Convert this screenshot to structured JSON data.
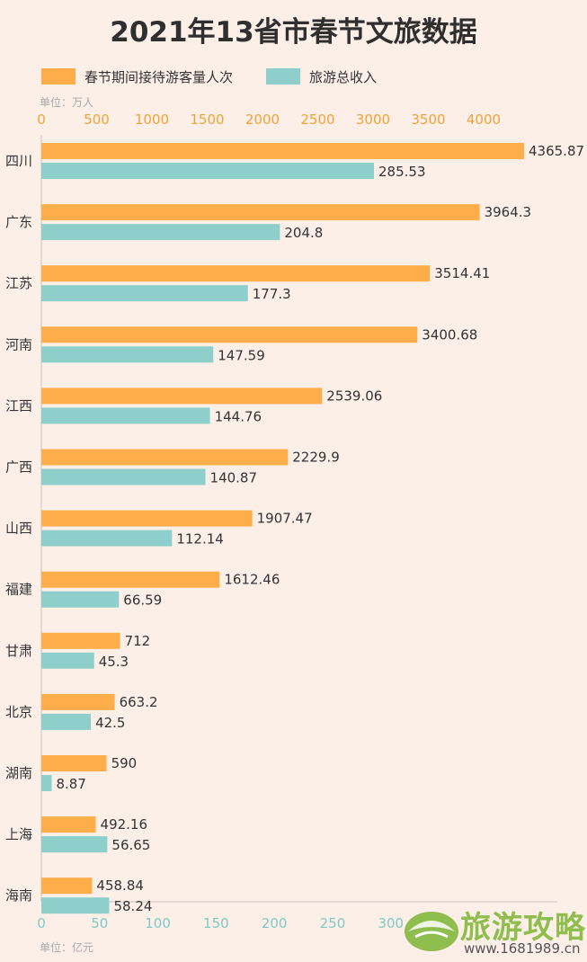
{
  "header": {
    "title": "2021年13省市春节文旅数据"
  },
  "units": {
    "top": "单位：万人",
    "bottom": "单位：亿元"
  },
  "colors": {
    "background": "#fcefe8",
    "visitors": "#fdad4a",
    "revenue": "#8ecfcc",
    "top_axis_text": "#f2a238",
    "bottom_axis_text": "#7fcac6"
  },
  "watermark": {
    "name": "旅游攻略",
    "url": "www.1681989.cn",
    "icon": "leaf-logo-icon"
  },
  "chart_data": {
    "type": "bar",
    "orientation": "horizontal",
    "title": "2021年13省市春节文旅数据",
    "categories": [
      "四川",
      "广东",
      "江苏",
      "河南",
      "江西",
      "广西",
      "山西",
      "福建",
      "甘肃",
      "北京",
      "湖南",
      "上海",
      "海南"
    ],
    "series": [
      {
        "name": "春节期间接待游客量人次",
        "axis": "top",
        "unit": "万人",
        "values": [
          4365.87,
          3964.3,
          3514.41,
          3400.68,
          2539.06,
          2229.9,
          1907.47,
          1612.46,
          712,
          663.2,
          590,
          492.16,
          458.84
        ],
        "labels": [
          "4365.87",
          "3964.3",
          "3514.41",
          "3400.68",
          "2539.06",
          "2229.9",
          "1907.47",
          "1612.46",
          "712",
          "663.2",
          "590",
          "492.16",
          "458.84"
        ]
      },
      {
        "name": "旅游总收入",
        "axis": "bottom",
        "unit": "亿元",
        "values": [
          285.53,
          204.8,
          177.3,
          147.59,
          144.76,
          140.87,
          112.14,
          66.59,
          45.3,
          42.5,
          8.87,
          56.65,
          58.24
        ],
        "labels": [
          "285.53",
          "204.8",
          "177.3",
          "147.59",
          "144.76",
          "140.87",
          "112.14",
          "66.59",
          "45.3",
          "42.5",
          "8.87",
          "56.65",
          "58.24"
        ]
      }
    ],
    "top_axis": {
      "ticks": [
        0,
        500,
        1000,
        1500,
        2000,
        2500,
        3000,
        3500,
        4000
      ],
      "labels": [
        "0",
        "500",
        "1000",
        "1500",
        "2000",
        "2500",
        "3000",
        "3500",
        "4000"
      ]
    },
    "bottom_axis": {
      "ticks": [
        0,
        50,
        100,
        150,
        200,
        250,
        300
      ],
      "labels": [
        "0",
        "50",
        "100",
        "150",
        "200",
        "250",
        "300"
      ]
    },
    "grid": false,
    "legend_position": "top-left"
  }
}
